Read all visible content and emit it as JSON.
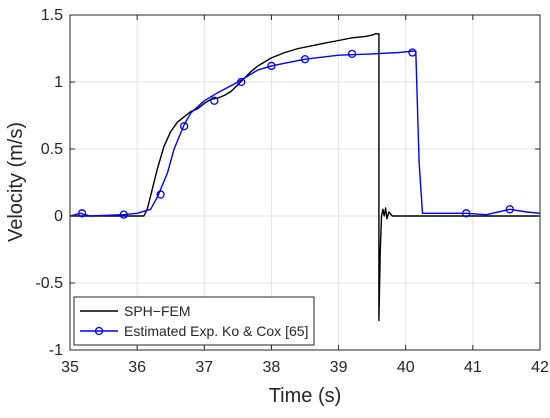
{
  "chart_data": {
    "type": "line",
    "title": "",
    "xlabel": "Time (s)",
    "ylabel": "Velocity (m/s)",
    "xlim": [
      35,
      42
    ],
    "ylim": [
      -1,
      1.5
    ],
    "x_ticks": [
      35,
      36,
      37,
      38,
      39,
      40,
      41,
      42
    ],
    "y_ticks": [
      -1,
      -0.5,
      0,
      0.5,
      1,
      1.5
    ],
    "x_tick_labels": [
      "35",
      "36",
      "37",
      "38",
      "39",
      "40",
      "41",
      "42"
    ],
    "y_tick_labels": [
      "-1",
      "-0.5",
      "0",
      "0.5",
      "1",
      "1.5"
    ],
    "grid": true,
    "legend_position": "bottom-left",
    "series": [
      {
        "name": "SPH−FEM",
        "color": "#000000",
        "marker": "none",
        "x": [
          35.0,
          35.5,
          36.0,
          36.1,
          36.15,
          36.2,
          36.3,
          36.4,
          36.5,
          36.6,
          36.7,
          36.8,
          36.9,
          37.0,
          37.1,
          37.2,
          37.3,
          37.4,
          37.5,
          37.6,
          37.7,
          37.8,
          37.9,
          38.0,
          38.2,
          38.4,
          38.6,
          38.8,
          39.0,
          39.2,
          39.4,
          39.5,
          39.55,
          39.58,
          39.6,
          39.6,
          39.62,
          39.64,
          39.66,
          39.68,
          39.7,
          39.72,
          39.75,
          39.8,
          40.0,
          40.2,
          40.5,
          41.0,
          41.5,
          42.0
        ],
        "y": [
          0.0,
          0.0,
          0.0,
          0.0,
          0.05,
          0.15,
          0.35,
          0.52,
          0.63,
          0.7,
          0.74,
          0.78,
          0.8,
          0.84,
          0.87,
          0.88,
          0.9,
          0.93,
          0.98,
          1.03,
          1.08,
          1.12,
          1.15,
          1.18,
          1.22,
          1.25,
          1.27,
          1.29,
          1.31,
          1.33,
          1.34,
          1.35,
          1.36,
          1.36,
          1.36,
          -0.78,
          -0.28,
          0.0,
          0.05,
          0.0,
          0.06,
          -0.02,
          0.03,
          0.0,
          0.0,
          0.0,
          0.0,
          0.0,
          0.0,
          0.0
        ]
      },
      {
        "name": "Estimated Exp. Ko & Cox [65]",
        "color": "#0000ff",
        "marker": "circle",
        "x": [
          35.0,
          35.15,
          35.3,
          35.8,
          36.0,
          36.2,
          36.3,
          36.45,
          36.55,
          36.7,
          36.8,
          37.0,
          37.2,
          37.5,
          37.8,
          38.0,
          38.2,
          38.5,
          39.0,
          39.5,
          39.9,
          40.1,
          40.15,
          40.2,
          40.25,
          40.6,
          40.9,
          41.2,
          41.55,
          41.8,
          42.0
        ],
        "y": [
          0.0,
          0.02,
          0.0,
          0.01,
          0.02,
          0.05,
          0.14,
          0.32,
          0.5,
          0.68,
          0.77,
          0.86,
          0.92,
          1.0,
          1.09,
          1.12,
          1.14,
          1.17,
          1.2,
          1.21,
          1.22,
          1.23,
          1.23,
          0.4,
          0.02,
          0.02,
          0.02,
          0.01,
          0.05,
          0.03,
          0.02
        ],
        "marker_x": [
          35.18,
          35.8,
          36.35,
          36.7,
          37.15,
          37.55,
          38.0,
          38.5,
          39.2,
          40.1,
          40.9,
          41.55
        ],
        "marker_y": [
          0.02,
          0.01,
          0.16,
          0.67,
          0.86,
          1.0,
          1.12,
          1.17,
          1.21,
          1.22,
          0.02,
          0.05
        ]
      }
    ]
  }
}
